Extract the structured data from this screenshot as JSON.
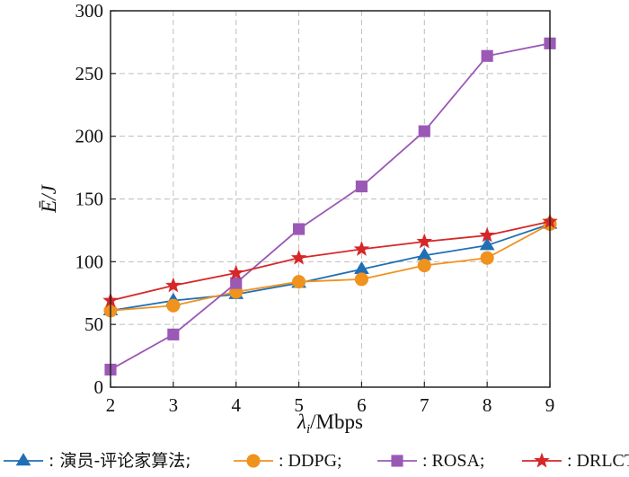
{
  "chart_data": {
    "type": "line",
    "x": [
      2,
      3,
      4,
      5,
      6,
      7,
      8,
      9
    ],
    "xlim": [
      2,
      9
    ],
    "ylim": [
      0,
      300
    ],
    "xticks": [
      2,
      3,
      4,
      5,
      6,
      7,
      8,
      9
    ],
    "yticks": [
      0,
      50,
      100,
      150,
      200,
      250,
      300
    ],
    "ylabel": "Ē/J",
    "xlabel_main": "λ",
    "xlabel_sub": "i",
    "xlabel_unit": "/Mbps",
    "grid": true,
    "legend_position": "bottom",
    "series": [
      {
        "name": "演员-评论家算法",
        "label": ": 演员-评论家算法;",
        "color": "#1f6fb5",
        "marker": "triangle",
        "values": [
          61,
          69,
          74,
          83,
          94,
          105,
          113,
          130
        ]
      },
      {
        "name": "DDPG",
        "label": ": DDPG;",
        "color": "#f0921e",
        "marker": "circle",
        "values": [
          61,
          65,
          76,
          84,
          86,
          97,
          103,
          130
        ]
      },
      {
        "name": "ROSA",
        "label": ": ROSA;",
        "color": "#9b59b6",
        "marker": "square",
        "values": [
          14,
          42,
          83,
          126,
          160,
          204,
          264,
          274
        ]
      },
      {
        "name": "DRLCT",
        "label": ": DRLCT。",
        "color": "#d62728",
        "marker": "star",
        "values": [
          69,
          81,
          91,
          103,
          110,
          116,
          121,
          132
        ]
      }
    ]
  }
}
